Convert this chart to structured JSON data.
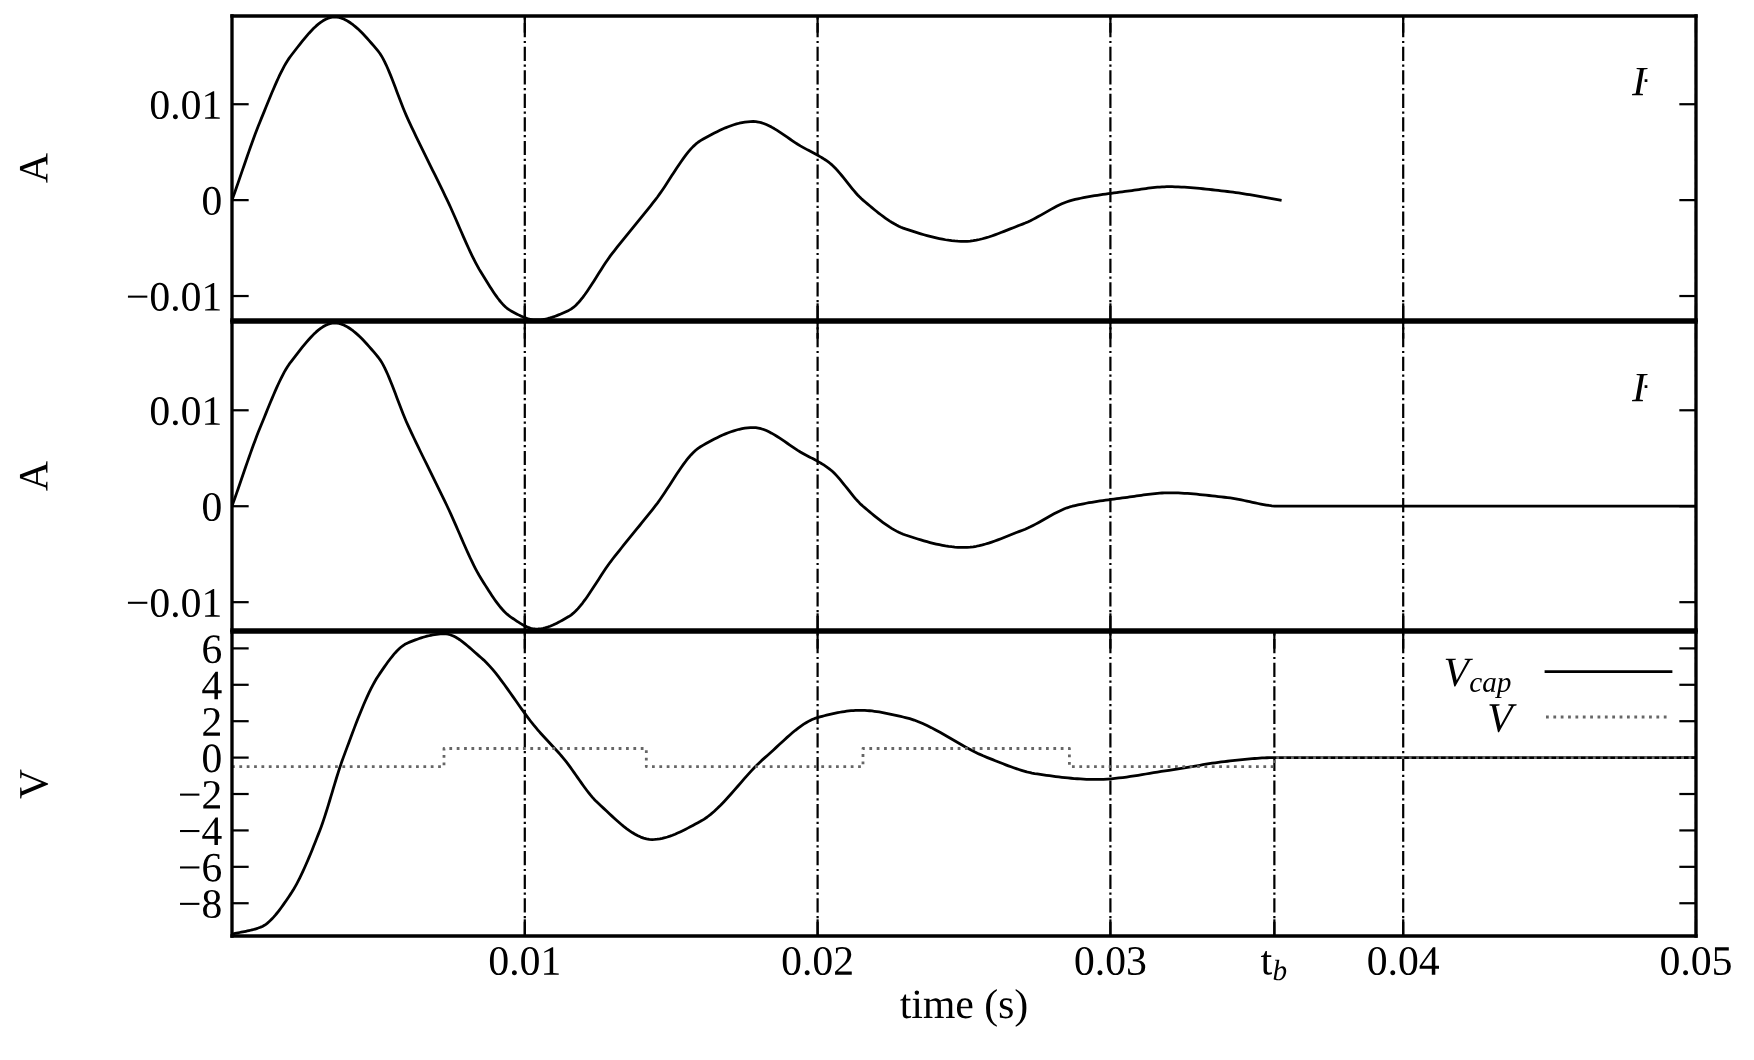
{
  "chart_data": [
    {
      "type": "line",
      "ylabel": "A",
      "xlim": [
        0,
        0.05
      ],
      "ylim": [
        -0.0125,
        0.0192
      ],
      "xticks": [
        {
          "value": 0.01,
          "label": null
        },
        {
          "value": 0.02,
          "label": null
        },
        {
          "value": 0.03,
          "label": null
        },
        {
          "value": 0.04,
          "label": null
        },
        {
          "value": 0.05,
          "label": null
        }
      ],
      "yticks": [
        {
          "value": -0.01,
          "label": "−0.01"
        },
        0,
        0.01
      ],
      "tick_labels": "y",
      "grid": "x",
      "legend": "top right",
      "series": [
        {
          "name": "I",
          "color": "#000000",
          "x": [
            0,
            0.001,
            0.002,
            0.0035,
            0.005,
            0.006,
            0.00735,
            0.0085,
            0.0095,
            0.0104,
            0.0115,
            0.013,
            0.01445,
            0.016,
            0.0178,
            0.0195,
            0.0204,
            0.02155,
            0.023,
            0.025,
            0.027,
            0.0287,
            0.0305,
            0.032,
            0.034,
            0.0358
          ],
          "values": [
            0,
            0.0085,
            0.015,
            0.0191,
            0.0155,
            0.0085,
            0,
            -0.0075,
            -0.0115,
            -0.0125,
            -0.0115,
            -0.0055,
            0,
            0.0062,
            0.0082,
            0.0055,
            0.0039,
            0,
            -0.003,
            -0.0043,
            -0.0025,
            0,
            0.0009,
            0.0014,
            0.0009,
            0
          ]
        }
      ]
    },
    {
      "type": "line",
      "ylabel": "A",
      "xlim": [
        0,
        0.05
      ],
      "ylim": [
        -0.0129,
        0.0192
      ],
      "xticks": [
        {
          "value": 0.01,
          "label": null
        },
        {
          "value": 0.02,
          "label": null
        },
        {
          "value": 0.03,
          "label": null
        },
        {
          "value": 0.04,
          "label": null
        },
        {
          "value": 0.05,
          "label": null
        }
      ],
      "yticks": [
        {
          "value": -0.01,
          "label": "−0.01"
        },
        0,
        0.01
      ],
      "tick_labels": "y",
      "grid": "x",
      "legend": "top right",
      "series": [
        {
          "name": "I",
          "color": "#000000",
          "x": [
            0,
            0.001,
            0.002,
            0.0035,
            0.005,
            0.006,
            0.00735,
            0.0085,
            0.0095,
            0.0104,
            0.0115,
            0.013,
            0.01445,
            0.016,
            0.0178,
            0.0195,
            0.0204,
            0.02155,
            0.023,
            0.025,
            0.027,
            0.0287,
            0.0305,
            0.032,
            0.034,
            0.0358,
            0.05
          ],
          "values": [
            0,
            0.0085,
            0.015,
            0.0191,
            0.0155,
            0.0085,
            0,
            -0.0075,
            -0.0115,
            -0.0128,
            -0.0115,
            -0.0055,
            0,
            0.0062,
            0.0082,
            0.0055,
            0.0039,
            0,
            -0.003,
            -0.0043,
            -0.0025,
            0,
            0.0009,
            0.0014,
            0.0009,
            0,
            0
          ]
        }
      ]
    },
    {
      "type": "line",
      "ylabel": "V",
      "xlabel": "time (s)",
      "xlim": [
        0,
        0.05
      ],
      "ylim": [
        -9.8,
        6.9
      ],
      "xticks": [
        0.01,
        0.02,
        0.03,
        {
          "value": 0.0356,
          "label": "t$_{b}$"
        },
        0.04,
        0.05
      ],
      "yticks": [
        {
          "value": -8,
          "label": "−8"
        },
        {
          "value": -6,
          "label": "−6"
        },
        {
          "value": -4,
          "label": "−4"
        },
        {
          "value": -2,
          "label": "−2"
        },
        0,
        2,
        4,
        6
      ],
      "grid": "x",
      "legend": "top right",
      "series": [
        {
          "name": "V$_{cap}$",
          "color": "#000000",
          "line_style": "solid",
          "x": [
            0,
            0.001,
            0.002,
            0.003,
            0.0038,
            0.005,
            0.006,
            0.00725,
            0.0085,
            0.0104,
            0.0113,
            0.0125,
            0.01435,
            0.016,
            0.0182,
            0.02,
            0.02145,
            0.023,
            0.0258,
            0.0275,
            0.0295,
            0.032,
            0.034,
            0.0356,
            0.05
          ],
          "values": [
            -9.7,
            -9.3,
            -7.5,
            -4,
            0,
            4.5,
            6.3,
            6.8,
            5.5,
            1.6,
            0,
            -2.5,
            -4.5,
            -3.5,
            0,
            2.2,
            2.6,
            2.2,
            0,
            -0.9,
            -1.2,
            -0.7,
            -0.2,
            0,
            0
          ]
        },
        {
          "name": "V",
          "type": "step",
          "color": "#666666",
          "line_style": "dotted",
          "x": [
            0,
            0.00724,
            0.01415,
            0.02155,
            0.0286,
            0.0356,
            0.05
          ],
          "values": [
            -0.5,
            0.5,
            -0.5,
            0.5,
            -0.5,
            0,
            0
          ]
        }
      ]
    }
  ]
}
